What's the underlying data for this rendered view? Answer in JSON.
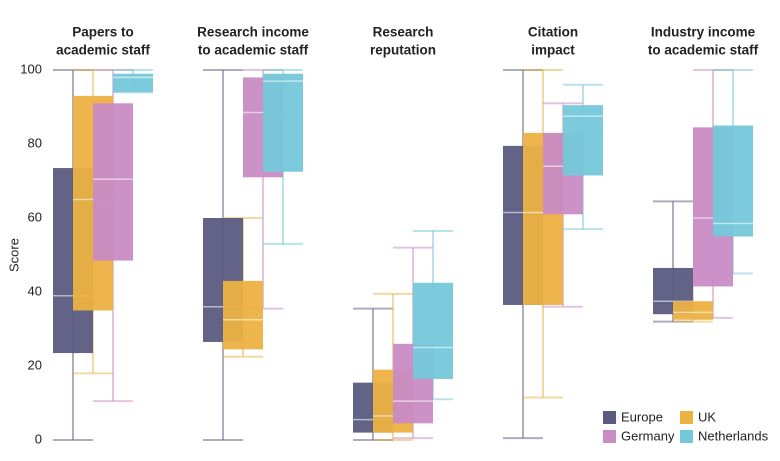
{
  "chart_data": {
    "type": "box",
    "y_label": "Score",
    "categories": [
      [
        "Papers to",
        "academic staff"
      ],
      [
        "Research income",
        "to academic staff"
      ],
      [
        "Research",
        "reputation"
      ],
      [
        "Citation",
        "impact"
      ],
      [
        "Industry income",
        "to academic staff"
      ]
    ],
    "ylim": [
      0,
      100
    ],
    "yticks": [
      0,
      20,
      40,
      60,
      80,
      100
    ],
    "legend": "bottom-right",
    "series": [
      {
        "name": "Europe",
        "color": "#5b5b82",
        "whisker_low": [
          0,
          0,
          0,
          0.5,
          32
        ],
        "q1": [
          23.5,
          26.5,
          2,
          36.5,
          34
        ],
        "median": [
          39,
          36,
          5.5,
          61.5,
          37.5
        ],
        "q3": [
          73.5,
          60,
          15.5,
          79.5,
          46.5
        ],
        "whisker_high": [
          100,
          100,
          35.5,
          100,
          64.5
        ]
      },
      {
        "name": "UK",
        "color": "#ecb141",
        "whisker_low": [
          18,
          22.5,
          0,
          11.5,
          32
        ],
        "q1": [
          35,
          24.5,
          2,
          36.5,
          32.5
        ],
        "median": [
          65,
          32.5,
          6.5,
          61.5,
          34.5
        ],
        "q3": [
          93,
          43,
          19,
          83,
          37.5
        ],
        "whisker_high": [
          100,
          60,
          39.5,
          100,
          44.5
        ]
      },
      {
        "name": "Germany",
        "color": "#c98bc4",
        "whisker_low": [
          10.5,
          35.5,
          0.5,
          36,
          33
        ],
        "q1": [
          48.5,
          71,
          4.5,
          61,
          41.5
        ],
        "median": [
          70.5,
          88.5,
          10.5,
          74,
          60
        ],
        "q3": [
          91,
          98,
          26,
          83,
          84.5
        ],
        "whisker_high": [
          100,
          100,
          52,
          91,
          100
        ]
      },
      {
        "name": "Netherlands",
        "color": "#74c8da",
        "whisker_low": [
          94,
          53,
          11,
          57,
          45
        ],
        "q1": [
          94,
          72.5,
          16.5,
          71.5,
          55
        ],
        "median": [
          98,
          97,
          25,
          87.5,
          58.5
        ],
        "q3": [
          99,
          99,
          42.5,
          90.5,
          85
        ],
        "whisker_high": [
          100,
          100,
          56.5,
          96,
          100
        ]
      }
    ]
  }
}
